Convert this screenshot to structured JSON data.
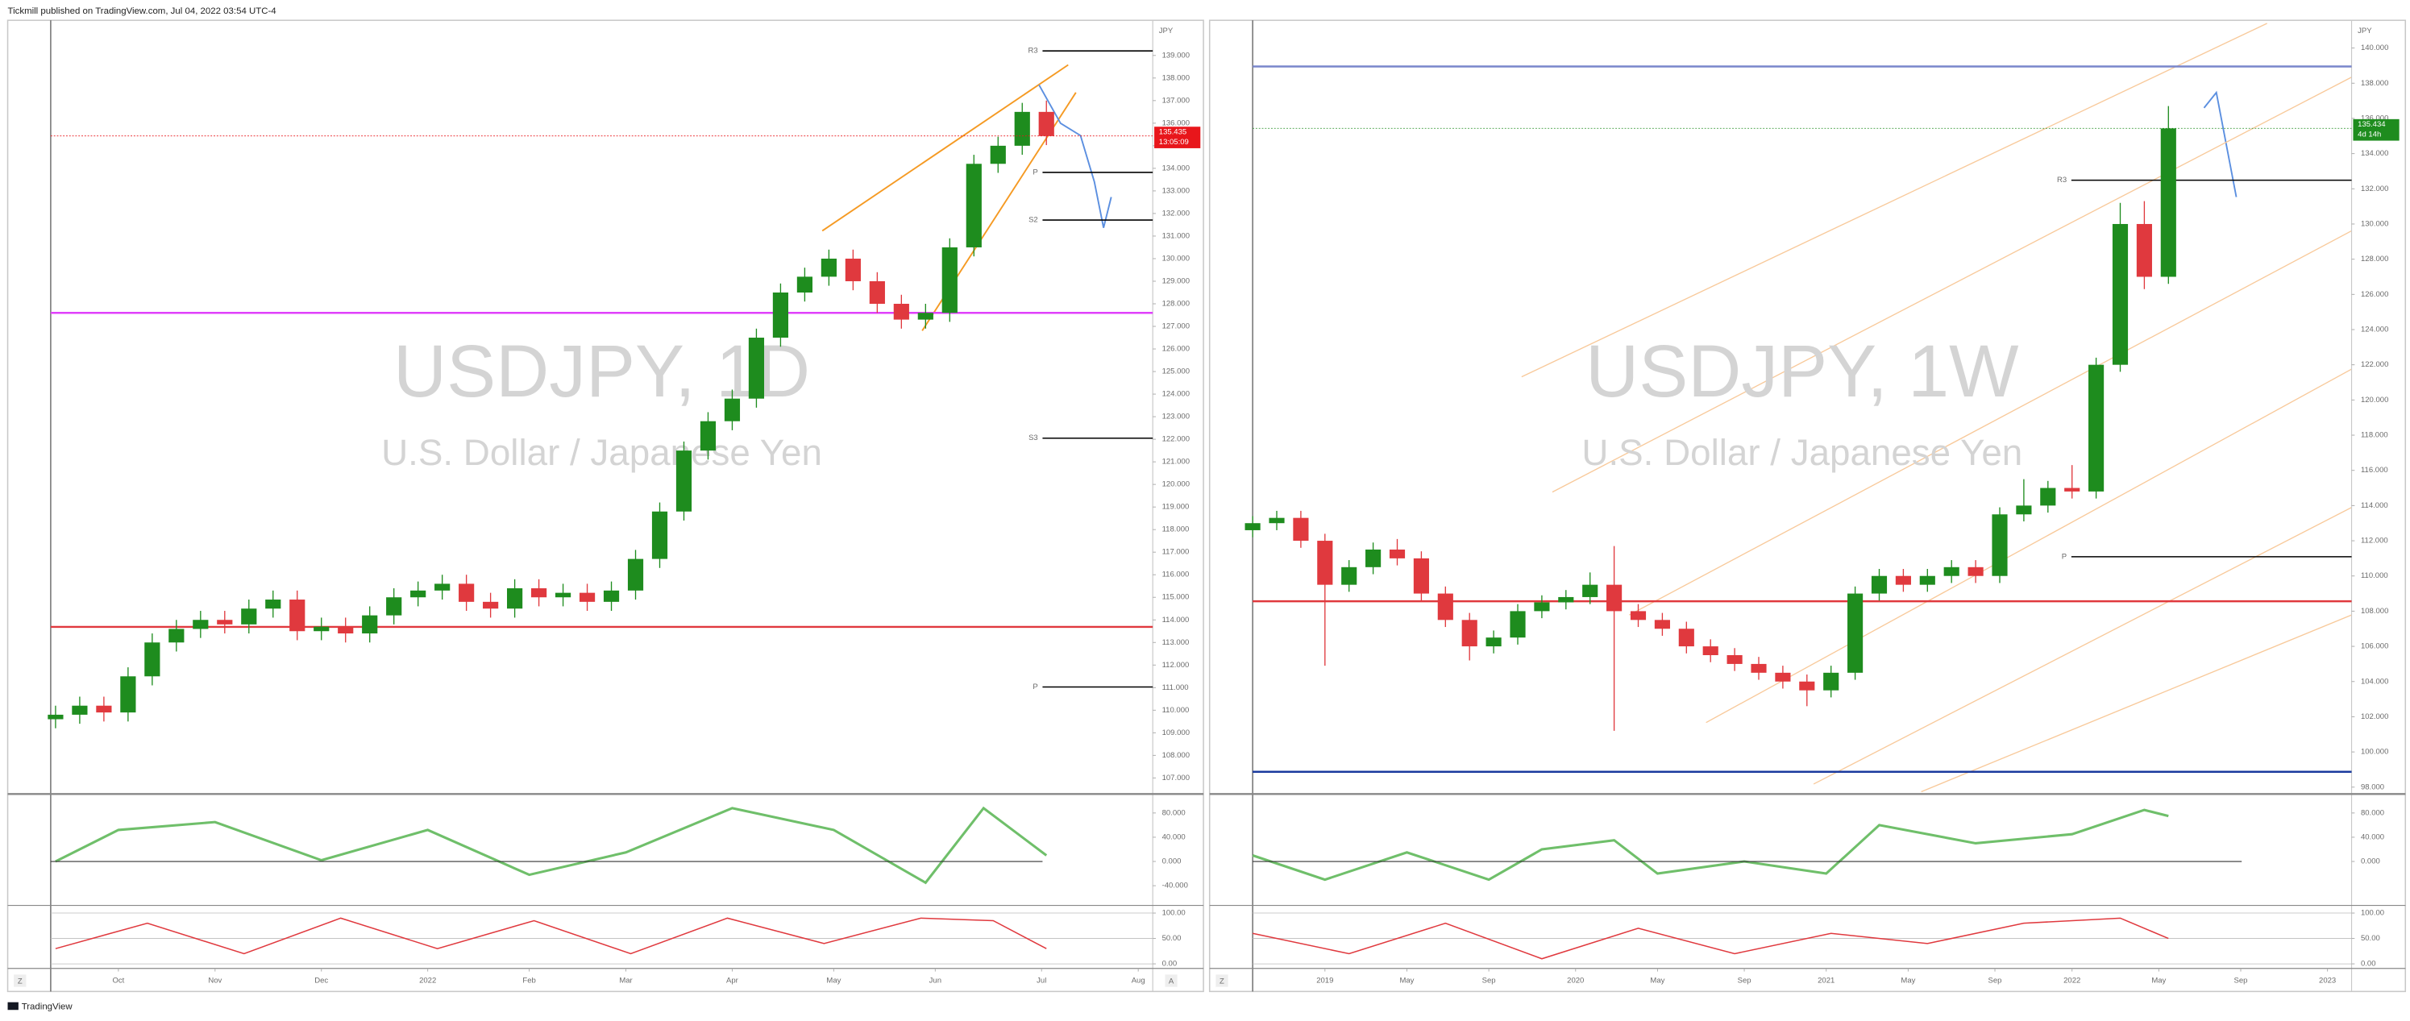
{
  "header": "Tickmill published on TradingView.com, Jul 04, 2022 03:54 UTC-4",
  "footer": "TradingView",
  "chart_data": [
    {
      "type": "candlestick",
      "title": "USDJPY, 1D",
      "subtitle": "U.S. Dollar / Japanese Yen",
      "currency": "JPY",
      "up_color": "#1e8c1e",
      "down_color": "#e0393e",
      "x": [
        1,
        6,
        11,
        16,
        21,
        26,
        31,
        36,
        41,
        46,
        51,
        56,
        61,
        66,
        71,
        76,
        81,
        86,
        91,
        96,
        101,
        106,
        111,
        116,
        121,
        126,
        131,
        136,
        141,
        146,
        151,
        156,
        161,
        166,
        171,
        176,
        181,
        186,
        191,
        196,
        201,
        206
      ],
      "open": [
        109.6,
        109.8,
        110.2,
        109.9,
        111.5,
        113.0,
        113.6,
        114.0,
        113.8,
        114.5,
        114.9,
        113.5,
        113.7,
        113.4,
        114.2,
        115.0,
        115.3,
        115.6,
        114.8,
        114.5,
        115.4,
        115.0,
        115.2,
        114.8,
        115.3,
        116.7,
        118.8,
        121.5,
        122.8,
        123.8,
        126.5,
        128.5,
        129.2,
        130.0,
        129.0,
        128.0,
        127.3,
        127.6,
        130.5,
        134.2,
        135.0,
        136.5
      ],
      "high": [
        110.2,
        110.6,
        110.6,
        111.9,
        113.4,
        114.0,
        114.4,
        114.4,
        114.9,
        115.3,
        115.3,
        114.1,
        114.1,
        114.6,
        115.4,
        115.7,
        116.0,
        116.0,
        115.2,
        115.8,
        115.8,
        115.6,
        115.6,
        115.7,
        117.1,
        119.2,
        121.9,
        123.2,
        124.2,
        126.9,
        128.9,
        129.6,
        130.4,
        130.4,
        129.4,
        128.4,
        128.0,
        130.9,
        134.6,
        135.4,
        136.9,
        137.0
      ],
      "low": [
        109.2,
        109.4,
        109.5,
        109.5,
        111.1,
        112.6,
        113.2,
        113.4,
        113.4,
        114.1,
        113.1,
        113.1,
        113.0,
        113.0,
        113.8,
        114.6,
        114.9,
        114.4,
        114.1,
        114.1,
        114.6,
        114.6,
        114.4,
        114.4,
        114.9,
        116.3,
        118.4,
        121.1,
        122.4,
        123.4,
        126.1,
        128.1,
        128.8,
        128.6,
        127.6,
        126.9,
        126.9,
        127.2,
        130.1,
        133.8,
        134.6,
        135.03
      ],
      "close": [
        109.8,
        110.2,
        109.9,
        111.5,
        113.0,
        113.6,
        114.0,
        113.8,
        114.5,
        114.9,
        113.5,
        113.7,
        113.4,
        114.2,
        115.0,
        115.3,
        115.6,
        114.8,
        114.5,
        115.4,
        115.0,
        115.2,
        114.8,
        115.3,
        116.7,
        118.8,
        121.5,
        122.8,
        123.8,
        126.5,
        128.5,
        129.2,
        130.0,
        129.0,
        128.0,
        127.3,
        127.6,
        130.5,
        134.2,
        135.0,
        136.5,
        135.43
      ],
      "xlim": [
        0,
        228
      ],
      "xticks": [
        {
          "value": 14,
          "label": "Oct"
        },
        {
          "value": 34,
          "label": "Nov"
        },
        {
          "value": 56,
          "label": "Dec"
        },
        {
          "value": 78,
          "label": "2022"
        },
        {
          "value": 99,
          "label": "Feb"
        },
        {
          "value": 119,
          "label": "Mar"
        },
        {
          "value": 141,
          "label": "Apr"
        },
        {
          "value": 162,
          "label": "May"
        },
        {
          "value": 183,
          "label": "Jun"
        },
        {
          "value": 205,
          "label": "Jul"
        },
        {
          "value": 225,
          "label": "Aug"
        }
      ],
      "ylim": [
        106.39,
        140.42
      ],
      "yticks": [
        {
          "value": 107,
          "label": "107.000"
        },
        {
          "value": 108,
          "label": "108.000"
        },
        {
          "value": 109,
          "label": "109.000"
        },
        {
          "value": 110,
          "label": "110.000"
        },
        {
          "value": 111,
          "label": "111.000"
        },
        {
          "value": 112,
          "label": "112.000"
        },
        {
          "value": 113,
          "label": "113.000"
        },
        {
          "value": 114,
          "label": "114.000"
        },
        {
          "value": 115,
          "label": "115.000"
        },
        {
          "value": 116,
          "label": "116.000"
        },
        {
          "value": 117,
          "label": "117.000"
        },
        {
          "value": 118,
          "label": "118.000"
        },
        {
          "value": 119,
          "label": "119.000"
        },
        {
          "value": 120,
          "label": "120.000"
        },
        {
          "value": 121,
          "label": "121.000"
        },
        {
          "value": 122,
          "label": "122.000"
        },
        {
          "value": 123,
          "label": "123.000"
        },
        {
          "value": 124,
          "label": "124.000"
        },
        {
          "value": 125,
          "label": "125.000"
        },
        {
          "value": 126,
          "label": "126.000"
        },
        {
          "value": 127,
          "label": "127.000"
        },
        {
          "value": 128,
          "label": "128.000"
        },
        {
          "value": 129,
          "label": "129.000"
        },
        {
          "value": 130,
          "label": "130.000"
        },
        {
          "value": 131,
          "label": "131.000"
        },
        {
          "value": 132,
          "label": "132.000"
        },
        {
          "value": 133,
          "label": "133.000"
        },
        {
          "value": 134,
          "label": "134.000"
        },
        {
          "value": 135,
          "label": "135.000"
        },
        {
          "value": 136,
          "label": "136.000"
        },
        {
          "value": 137,
          "label": "137.000"
        },
        {
          "value": 138,
          "label": "138.000"
        },
        {
          "value": 139,
          "label": "139.000"
        }
      ],
      "last_price": {
        "value": 135.435,
        "label": "135.435",
        "countdown": "13:05:09",
        "color": "#e8161b"
      },
      "levels": [
        {
          "label": "R3",
          "value": 139.2,
          "color": "#000000"
        },
        {
          "label": "P",
          "value": 133.82,
          "color": "#000000"
        },
        {
          "label": "S2",
          "value": 131.71,
          "color": "#000000"
        },
        {
          "label": "S3",
          "value": 122.05,
          "color": "#000000"
        },
        {
          "label": "P",
          "value": 111.03,
          "color": "#000000"
        },
        {
          "value": 113.69,
          "color": "#e0393e"
        },
        {
          "value": 127.6,
          "color": "#e040fb"
        }
      ],
      "rsi": {
        "color": "#6fbf6a",
        "x": [
          1,
          14,
          34,
          56,
          78,
          99,
          119,
          141,
          162,
          181,
          193,
          206
        ],
        "values": [
          0,
          52,
          65,
          2,
          52,
          -22,
          15,
          88,
          52,
          -35,
          88,
          10
        ],
        "ylim": [
          -70,
          107.5
        ],
        "yticks": [
          {
            "value": 80,
            "label": "80.000"
          },
          {
            "value": 40,
            "label": "40.000"
          },
          {
            "value": 0,
            "label": "0.000"
          },
          {
            "value": -40,
            "label": "-40.000"
          }
        ]
      },
      "stoch": {
        "color": "#e0393e",
        "x": [
          1,
          20,
          40,
          60,
          80,
          100,
          120,
          140,
          160,
          180,
          195,
          206
        ],
        "values": [
          30,
          80,
          20,
          90,
          30,
          85,
          20,
          90,
          40,
          90,
          85,
          30
        ],
        "ylim": [
          -9,
          112
        ],
        "yticks": [
          {
            "value": 100,
            "label": "100.00"
          },
          {
            "value": 50,
            "label": "50.00"
          },
          {
            "value": 0,
            "label": "0.00"
          }
        ]
      },
      "controls": [
        "Z",
        "A"
      ]
    },
    {
      "type": "candlestick",
      "title": "USDJPY, 1W",
      "subtitle": "U.S. Dollar / Japanese Yen",
      "currency": "JPY",
      "up_color": "#1e8c1e",
      "down_color": "#e0393e",
      "x": [
        0,
        5,
        10,
        15,
        20,
        25,
        30,
        35,
        40,
        45,
        50,
        55,
        60,
        65,
        70,
        75,
        80,
        85,
        90,
        95,
        100,
        105,
        110,
        115,
        120,
        125,
        130,
        135,
        140,
        145,
        150,
        155,
        160,
        165,
        170,
        175,
        180,
        185,
        190
      ],
      "open": [
        112.6,
        113.0,
        113.3,
        112.0,
        109.5,
        110.5,
        111.5,
        111.0,
        109.0,
        107.5,
        106.0,
        106.5,
        108.0,
        108.5,
        108.8,
        109.5,
        108.0,
        107.5,
        107.0,
        106.0,
        105.5,
        105.0,
        104.5,
        104.0,
        103.5,
        104.5,
        109.0,
        110.0,
        109.5,
        110.0,
        110.5,
        110.0,
        113.5,
        114.0,
        115.0,
        114.8,
        122.0,
        130.0,
        127.0
      ],
      "high": [
        113.4,
        113.7,
        113.7,
        112.4,
        110.9,
        111.9,
        112.1,
        111.4,
        109.4,
        107.9,
        106.9,
        108.4,
        108.9,
        109.2,
        110.2,
        111.7,
        108.4,
        107.9,
        107.4,
        106.4,
        105.9,
        105.4,
        104.9,
        104.4,
        104.9,
        109.4,
        110.4,
        110.4,
        110.4,
        110.9,
        110.9,
        113.9,
        115.5,
        115.4,
        116.3,
        122.4,
        131.2,
        131.3,
        136.7
      ],
      "low": [
        112.2,
        112.6,
        111.6,
        104.9,
        109.1,
        110.1,
        110.6,
        108.6,
        107.1,
        105.2,
        105.6,
        106.1,
        107.6,
        108.1,
        108.4,
        101.2,
        107.1,
        106.6,
        105.6,
        105.1,
        104.6,
        104.1,
        103.6,
        102.6,
        103.1,
        104.1,
        108.6,
        109.1,
        109.1,
        109.6,
        109.6,
        109.6,
        113.1,
        113.6,
        114.4,
        114.4,
        121.6,
        126.3,
        126.6
      ],
      "close": [
        113.0,
        113.3,
        112.0,
        109.5,
        110.5,
        111.5,
        111.0,
        109.0,
        107.5,
        106.0,
        106.5,
        108.0,
        108.5,
        108.8,
        109.5,
        108.0,
        107.5,
        107.0,
        106.0,
        105.5,
        105.0,
        104.5,
        104.0,
        103.5,
        104.5,
        109.0,
        110.0,
        109.5,
        110.0,
        110.5,
        110.0,
        113.5,
        114.0,
        115.0,
        114.8,
        122.0,
        130.0,
        127.0,
        135.43
      ],
      "xlim": [
        0,
        228
      ],
      "xticks": [
        {
          "value": 15,
          "label": "2019"
        },
        {
          "value": 32,
          "label": "May"
        },
        {
          "value": 49,
          "label": "Sep"
        },
        {
          "value": 67,
          "label": "2020"
        },
        {
          "value": 84,
          "label": "May"
        },
        {
          "value": 102,
          "label": "Sep"
        },
        {
          "value": 119,
          "label": "2021"
        },
        {
          "value": 136,
          "label": "May"
        },
        {
          "value": 154,
          "label": "Sep"
        },
        {
          "value": 170,
          "label": "2022"
        },
        {
          "value": 188,
          "label": "May"
        },
        {
          "value": 205,
          "label": "Sep"
        },
        {
          "value": 223,
          "label": "2023"
        }
      ],
      "ylim": [
        97.74,
        141.4
      ],
      "yticks": [
        {
          "value": 98,
          "label": "98.000"
        },
        {
          "value": 100,
          "label": "100.000"
        },
        {
          "value": 102,
          "label": "102.000"
        },
        {
          "value": 104,
          "label": "104.000"
        },
        {
          "value": 106,
          "label": "106.000"
        },
        {
          "value": 108,
          "label": "108.000"
        },
        {
          "value": 110,
          "label": "110.000"
        },
        {
          "value": 112,
          "label": "112.000"
        },
        {
          "value": 114,
          "label": "114.000"
        },
        {
          "value": 116,
          "label": "116.000"
        },
        {
          "value": 118,
          "label": "118.000"
        },
        {
          "value": 120,
          "label": "120.000"
        },
        {
          "value": 122,
          "label": "122.000"
        },
        {
          "value": 124,
          "label": "124.000"
        },
        {
          "value": 126,
          "label": "126.000"
        },
        {
          "value": 128,
          "label": "128.000"
        },
        {
          "value": 130,
          "label": "130.000"
        },
        {
          "value": 132,
          "label": "132.000"
        },
        {
          "value": 134,
          "label": "134.000"
        },
        {
          "value": 136,
          "label": "136.000"
        },
        {
          "value": 138,
          "label": "138.000"
        },
        {
          "value": 140,
          "label": "140.000"
        }
      ],
      "last_price": {
        "value": 135.434,
        "label": "135.434",
        "countdown": "4d 14h",
        "color": "#1e8c1e"
      },
      "levels": [
        {
          "label": "R3",
          "value": 132.49,
          "color": "#000000"
        },
        {
          "label": "P",
          "value": 111.09,
          "color": "#000000"
        },
        {
          "value": 108.56,
          "color": "#e0393e"
        },
        {
          "value": 138.95,
          "color": "#7986cb"
        },
        {
          "value": 98.87,
          "color": "#1a3a9e"
        }
      ],
      "rsi": {
        "color": "#6fbf6a",
        "x": [
          0,
          15,
          32,
          49,
          60,
          75,
          84,
          102,
          119,
          130,
          150,
          170,
          185,
          190
        ],
        "values": [
          10,
          -30,
          15,
          -30,
          20,
          35,
          -20,
          0,
          -20,
          60,
          30,
          45,
          85,
          75
        ],
        "ylim": [
          -70,
          107.5
        ],
        "yticks": [
          {
            "value": 80,
            "label": "80.000"
          },
          {
            "value": 40,
            "label": "40.000"
          },
          {
            "value": 0,
            "label": "0.000"
          }
        ]
      },
      "stoch": {
        "color": "#e0393e",
        "x": [
          0,
          20,
          40,
          60,
          80,
          100,
          120,
          140,
          160,
          180,
          190
        ],
        "values": [
          60,
          20,
          80,
          10,
          70,
          20,
          60,
          40,
          80,
          90,
          50
        ],
        "ylim": [
          -9,
          112
        ],
        "yticks": [
          {
            "value": 100,
            "label": "100.00"
          },
          {
            "value": 50,
            "label": "50.00"
          },
          {
            "value": 0,
            "label": "0.00"
          }
        ]
      },
      "controls": [
        "Z"
      ]
    }
  ]
}
